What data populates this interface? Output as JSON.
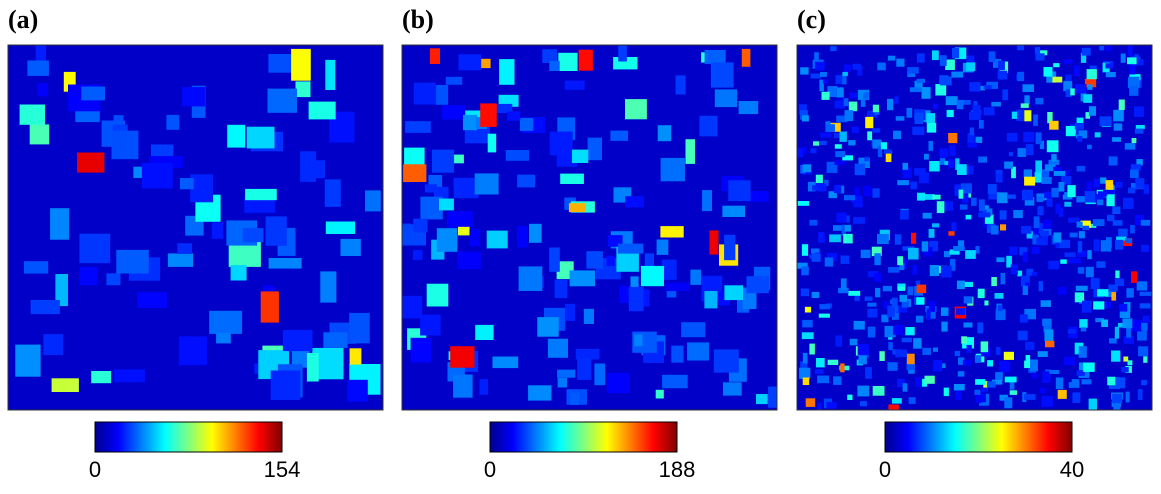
{
  "panels": [
    {
      "label": "(a)",
      "colorbar": {
        "min": 0,
        "max": 154
      }
    },
    {
      "label": "(b)",
      "colorbar": {
        "min": 0,
        "max": 188
      }
    },
    {
      "label": "(c)",
      "colorbar": {
        "min": 0,
        "max": 40
      }
    }
  ]
}
